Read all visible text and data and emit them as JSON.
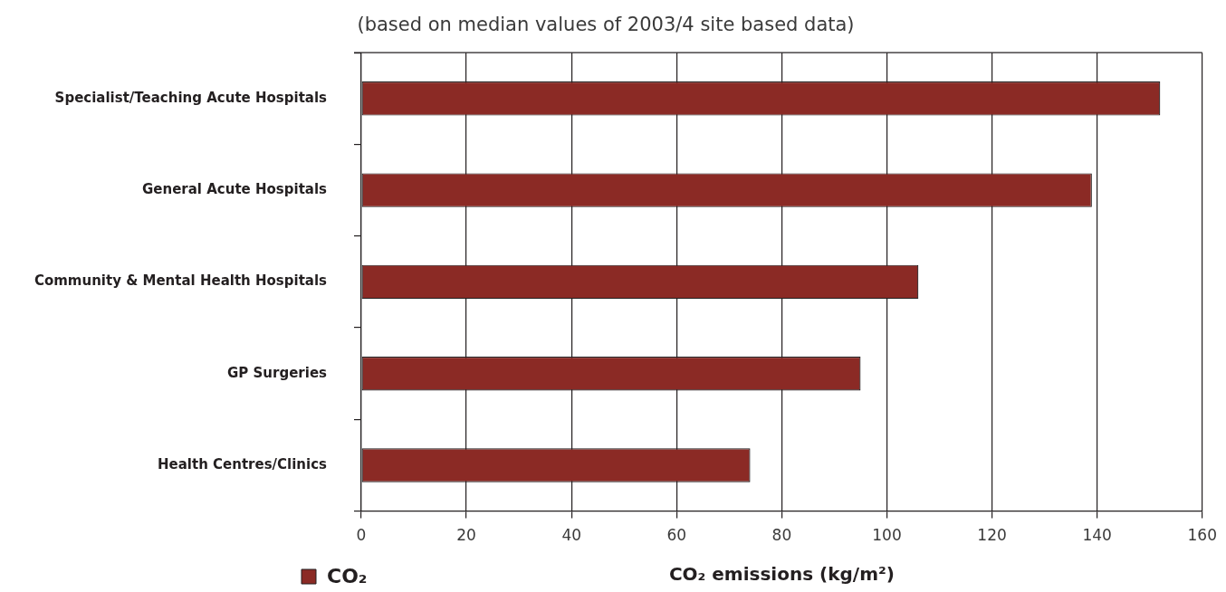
{
  "chart_data": {
    "type": "bar",
    "orientation": "horizontal",
    "subtitle": "(based on median values of 2003/4 site based data)",
    "xlabel": "CO₂ emissions (kg/m²)",
    "categories": [
      "Specialist/Teaching Acute Hospitals",
      "General Acute Hospitals",
      "Community & Mental Health Hospitals",
      "GP Surgeries",
      "Health Centres/Clinics"
    ],
    "series": [
      {
        "name": "CO₂",
        "color": "#8b2a25",
        "values": [
          152,
          139,
          106,
          95,
          74
        ]
      }
    ],
    "xlim": [
      0,
      160
    ],
    "xticks": [
      0,
      20,
      40,
      60,
      80,
      100,
      120,
      140,
      160
    ],
    "grid": "x",
    "legend": "bottom left"
  }
}
